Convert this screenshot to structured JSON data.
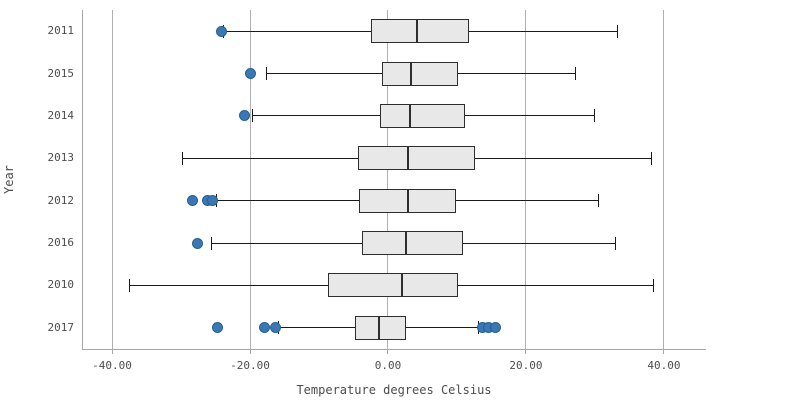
{
  "chart_data": {
    "type": "boxplot",
    "orientation": "horizontal",
    "title": "",
    "xlabel": "Temperature degrees Celsius",
    "ylabel": "Year",
    "xlim": [
      -44.35,
      46.09
    ],
    "grid": true,
    "x_ticks": [
      {
        "value": -40,
        "label": "-40.00"
      },
      {
        "value": -20,
        "label": "-20.00"
      },
      {
        "value": 0,
        "label": "0.00"
      },
      {
        "value": 20,
        "label": "20.00"
      },
      {
        "value": 40,
        "label": "40.00"
      }
    ],
    "categories": [
      "2011",
      "2015",
      "2014",
      "2013",
      "2012",
      "2016",
      "2010",
      "2017"
    ],
    "series": [
      {
        "category": "2011",
        "whisker_low": -23.9,
        "q1": -2.5,
        "median": 4.2,
        "q3": 11.8,
        "whisker_high": 33.3,
        "outliers": [
          -24.2
        ]
      },
      {
        "category": "2015",
        "whisker_low": -17.7,
        "q1": -0.9,
        "median": 3.3,
        "q3": 10.2,
        "whisker_high": 27.2,
        "outliers": [
          -20.0
        ]
      },
      {
        "category": "2014",
        "whisker_low": -19.7,
        "q1": -1.2,
        "median": 3.2,
        "q3": 11.1,
        "whisker_high": 30.0,
        "outliers": [
          -20.8
        ]
      },
      {
        "category": "2013",
        "whisker_low": -29.8,
        "q1": -4.4,
        "median": 2.9,
        "q3": 12.6,
        "whisker_high": 38.2,
        "outliers": []
      },
      {
        "category": "2012",
        "whisker_low": -25.0,
        "q1": -4.2,
        "median": 2.9,
        "q3": 9.9,
        "whisker_high": 30.6,
        "outliers": [
          -28.3,
          -26.2,
          -25.4
        ]
      },
      {
        "category": "2016",
        "whisker_low": -25.6,
        "q1": -3.7,
        "median": 2.6,
        "q3": 10.9,
        "whisker_high": 33.1,
        "outliers": [
          -27.6
        ]
      },
      {
        "category": "2010",
        "whisker_low": -37.5,
        "q1": -8.7,
        "median": 2.1,
        "q3": 10.2,
        "whisker_high": 38.5,
        "outliers": []
      },
      {
        "category": "2017",
        "whisker_low": -15.9,
        "q1": -4.8,
        "median": -1.3,
        "q3": 2.6,
        "whisker_high": 13.2,
        "outliers": [
          -24.7,
          -17.9,
          -16.3,
          13.7,
          14.5,
          15.6
        ]
      }
    ]
  },
  "colors": {
    "text": "#4d4d4d",
    "gridline": "#b0b0b0",
    "axis_line": "#a6a6a6",
    "box_fill": "#e8e8e8",
    "box_stroke": "#2e2e2e",
    "whisker": "#1a1a1a",
    "dot_fill": "#3b77b4",
    "dot_stroke": "#27618f"
  }
}
